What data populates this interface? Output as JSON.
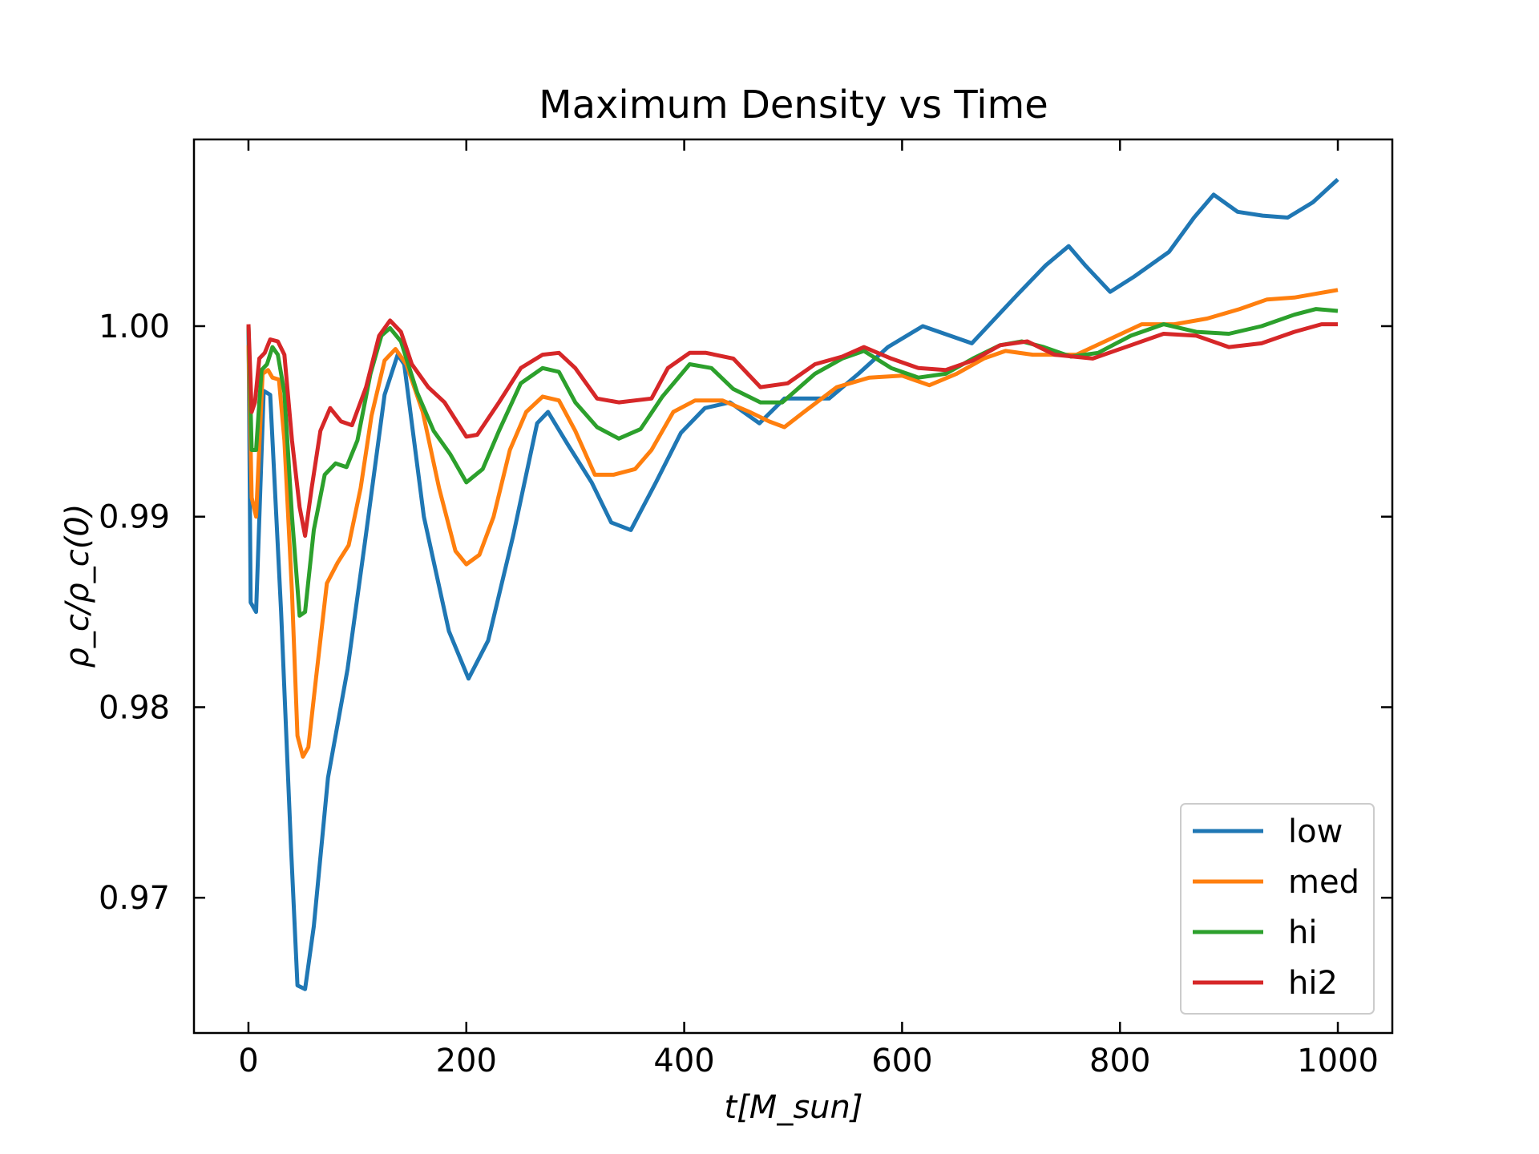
{
  "chart_data": {
    "type": "line",
    "title": "Maximum Density vs Time",
    "xlabel": "t[M_sun]",
    "ylabel": "ρ_c/ρ_c(0)",
    "xlim": [
      -50,
      1050
    ],
    "ylim": [
      0.9629,
      1.0098
    ],
    "xticks": [
      0,
      200,
      400,
      600,
      800,
      1000
    ],
    "xtick_labels": [
      "0",
      "200",
      "400",
      "600",
      "800",
      "1000"
    ],
    "yticks": [
      0.97,
      0.98,
      0.99,
      1.0
    ],
    "ytick_labels": [
      "0.97",
      "0.98",
      "0.99",
      "1.00"
    ],
    "grid": false,
    "legend_position": "lower-right",
    "series": [
      {
        "name": "low",
        "color": "#1f77b4",
        "x": [
          0,
          2,
          7,
          14,
          20,
          30,
          39,
          45,
          52,
          60,
          73,
          91,
          107,
          125,
          137,
          143,
          161,
          184,
          202,
          220,
          243,
          265,
          275,
          293,
          315,
          333,
          351,
          374,
          397,
          419,
          442,
          469,
          492,
          533,
          560,
          587,
          619,
          664,
          705,
          732,
          753,
          768,
          791,
          813,
          845,
          868,
          886,
          908,
          931,
          954,
          977,
          1000
        ],
        "y": [
          1.0,
          0.9855,
          0.985,
          0.9966,
          0.9964,
          0.985,
          0.9727,
          0.9654,
          0.9652,
          0.9685,
          0.9763,
          0.982,
          0.9887,
          0.9964,
          0.9985,
          0.998,
          0.99,
          0.984,
          0.9815,
          0.9835,
          0.989,
          0.9949,
          0.9955,
          0.9938,
          0.9918,
          0.9897,
          0.9893,
          0.9918,
          0.9944,
          0.9957,
          0.996,
          0.9949,
          0.9962,
          0.9962,
          0.9975,
          0.9989,
          1.0,
          0.9991,
          1.0016,
          1.0032,
          1.0042,
          1.0032,
          1.0018,
          1.0026,
          1.0039,
          1.0057,
          1.0069,
          1.006,
          1.0058,
          1.0057,
          1.0065,
          1.0077
        ]
      },
      {
        "name": "med",
        "color": "#ff7f0e",
        "x": [
          0,
          3,
          7,
          13,
          18,
          22,
          28,
          33,
          40,
          45,
          50,
          55,
          62,
          72,
          82,
          92,
          103,
          113,
          125,
          135,
          145,
          160,
          175,
          190,
          200,
          212,
          225,
          240,
          255,
          270,
          285,
          300,
          318,
          335,
          355,
          370,
          390,
          410,
          435,
          460,
          478,
          492,
          510,
          540,
          570,
          600,
          625,
          650,
          675,
          695,
          720,
          760,
          790,
          820,
          850,
          880,
          910,
          935,
          960,
          1000
        ],
        "y": [
          0.999,
          0.991,
          0.99,
          0.9975,
          0.9977,
          0.9973,
          0.9972,
          0.994,
          0.986,
          0.9785,
          0.9774,
          0.9779,
          0.9815,
          0.9865,
          0.9876,
          0.9885,
          0.9915,
          0.9953,
          0.9982,
          0.9988,
          0.998,
          0.9955,
          0.9915,
          0.9882,
          0.9875,
          0.988,
          0.99,
          0.9935,
          0.9955,
          0.9963,
          0.9961,
          0.9945,
          0.9922,
          0.9922,
          0.9925,
          0.9935,
          0.9955,
          0.9961,
          0.9961,
          0.9955,
          0.995,
          0.9947,
          0.9955,
          0.9968,
          0.9973,
          0.9974,
          0.9969,
          0.9975,
          0.9983,
          0.9987,
          0.9985,
          0.9985,
          0.9993,
          1.0001,
          1.0001,
          1.0004,
          1.0009,
          1.0014,
          1.0015,
          1.0019
        ]
      },
      {
        "name": "hi",
        "color": "#2ca02c",
        "x": [
          0,
          3,
          7,
          12,
          17,
          22,
          27,
          33,
          40,
          47,
          52,
          60,
          70,
          80,
          90,
          100,
          112,
          122,
          130,
          140,
          155,
          170,
          185,
          200,
          215,
          230,
          250,
          270,
          285,
          300,
          320,
          340,
          360,
          380,
          405,
          425,
          445,
          470,
          490,
          520,
          545,
          565,
          590,
          615,
          640,
          665,
          690,
          710,
          730,
          755,
          780,
          810,
          840,
          870,
          900,
          930,
          960,
          980,
          1000
        ],
        "y": [
          1.0,
          0.9935,
          0.9935,
          0.9977,
          0.998,
          0.9989,
          0.9985,
          0.9965,
          0.99,
          0.9848,
          0.985,
          0.9893,
          0.9922,
          0.9928,
          0.9926,
          0.994,
          0.9975,
          0.9995,
          0.9999,
          0.9992,
          0.9965,
          0.9945,
          0.9933,
          0.9918,
          0.9925,
          0.9945,
          0.997,
          0.9978,
          0.9976,
          0.996,
          0.9947,
          0.9941,
          0.9946,
          0.9963,
          0.998,
          0.9978,
          0.9967,
          0.996,
          0.996,
          0.9975,
          0.9983,
          0.9987,
          0.9978,
          0.9973,
          0.9975,
          0.9983,
          0.999,
          0.9992,
          0.9989,
          0.9984,
          0.9986,
          0.9995,
          1.0001,
          0.9997,
          0.9996,
          1.0,
          1.0006,
          1.0009,
          1.0008
        ]
      },
      {
        "name": "hi2",
        "color": "#d62728",
        "x": [
          0,
          3,
          6,
          10,
          15,
          20,
          27,
          33,
          40,
          47,
          52,
          58,
          66,
          75,
          85,
          95,
          108,
          120,
          130,
          140,
          150,
          165,
          180,
          200,
          210,
          230,
          250,
          270,
          285,
          300,
          320,
          340,
          355,
          370,
          385,
          405,
          420,
          445,
          470,
          495,
          520,
          545,
          565,
          590,
          615,
          640,
          665,
          690,
          715,
          740,
          775,
          810,
          840,
          870,
          900,
          930,
          960,
          985,
          1000
        ],
        "y": [
          1.0001,
          0.9955,
          0.996,
          0.9983,
          0.9986,
          0.9993,
          0.9992,
          0.9985,
          0.994,
          0.9905,
          0.989,
          0.9915,
          0.9945,
          0.9957,
          0.995,
          0.9948,
          0.9968,
          0.9995,
          1.0003,
          0.9997,
          0.998,
          0.9968,
          0.996,
          0.9942,
          0.9943,
          0.996,
          0.9978,
          0.9985,
          0.9986,
          0.9978,
          0.9962,
          0.996,
          0.9961,
          0.9962,
          0.9978,
          0.9986,
          0.9986,
          0.9983,
          0.9968,
          0.997,
          0.998,
          0.9984,
          0.9989,
          0.9983,
          0.9978,
          0.9977,
          0.9982,
          0.999,
          0.9992,
          0.9985,
          0.9983,
          0.999,
          0.9996,
          0.9995,
          0.9989,
          0.9991,
          0.9997,
          1.0001,
          1.0001
        ]
      }
    ]
  }
}
